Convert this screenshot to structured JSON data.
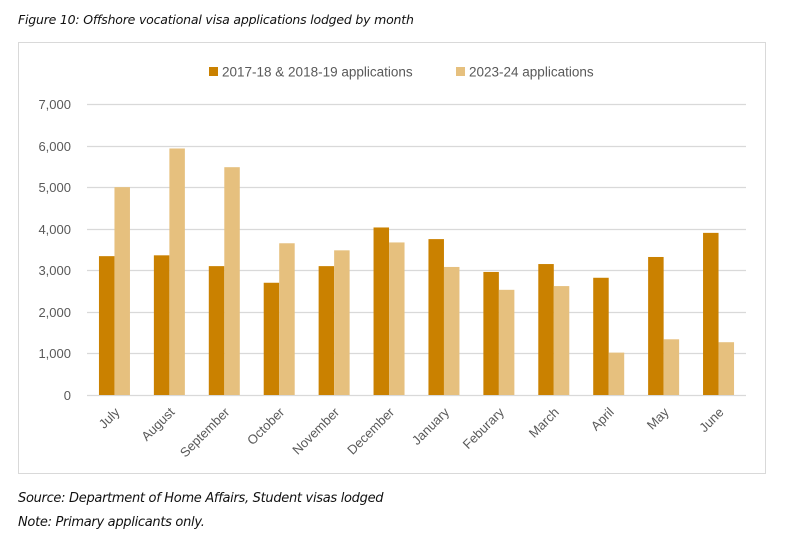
{
  "figure_title": "Figure 10: Offshore vocational visa applications lodged by month",
  "source_note": "Source: Department of Home Affairs, Student visas lodged",
  "note": "Note: Primary applicants only.",
  "colors": {
    "series1": "#CA8100",
    "series2": "#E6C07E",
    "gridline": "#D9D9D9",
    "tick_text": "#595959"
  },
  "chart_data": {
    "type": "bar",
    "title": "",
    "xlabel": "",
    "ylabel": "",
    "ylim": [
      0,
      7000
    ],
    "yticks": [
      0,
      1000,
      2000,
      3000,
      4000,
      5000,
      6000,
      7000
    ],
    "ytick_labels": [
      "0",
      "1,000",
      "2,000",
      "3,000",
      "4,000",
      "5,000",
      "6,000",
      "7,000"
    ],
    "grid": true,
    "legend_position": "top-center",
    "categories": [
      "July",
      "August",
      "September",
      "October",
      "November",
      "December",
      "January",
      "Feburary",
      "March",
      "April",
      "May",
      "June"
    ],
    "series": [
      {
        "name": "2017-18 & 2018-19 applications",
        "color": "#CA8100",
        "values": [
          3340,
          3360,
          3100,
          2700,
          3100,
          4030,
          3750,
          2960,
          3150,
          2820,
          3320,
          3900
        ]
      },
      {
        "name": "2023-24 applications",
        "color": "#E6C07E",
        "values": [
          5000,
          5930,
          5480,
          3650,
          3480,
          3670,
          3080,
          2530,
          2620,
          1020,
          1340,
          1270
        ]
      }
    ]
  }
}
